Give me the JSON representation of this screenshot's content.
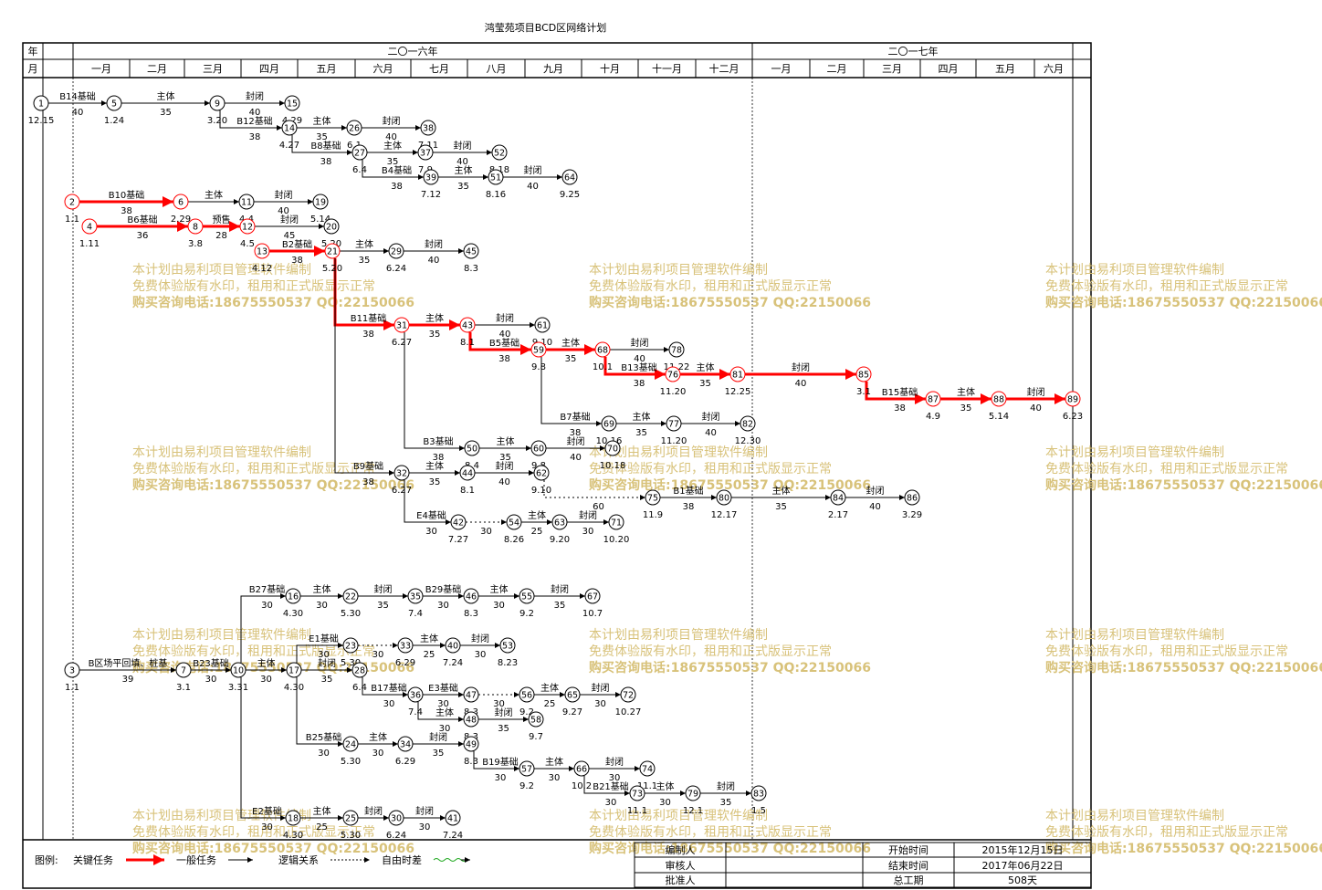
{
  "title": "鸿莹苑项目BCD区网络计划",
  "header": {
    "year_label": "年",
    "month_label": "月",
    "years": [
      "二〇一六年",
      "二〇一七年"
    ],
    "months": [
      "一月",
      "二月",
      "三月",
      "四月",
      "五月",
      "六月",
      "七月",
      "八月",
      "九月",
      "十月",
      "十一月",
      "十二月",
      "一月",
      "二月",
      "三月",
      "四月",
      "五月",
      "六月"
    ]
  },
  "watermark": {
    "line1": "本计划由易利项目管理软件编制",
    "line2": "免费体验版有水印，租用和正式版显示正常",
    "line3": "购买咨询电话:18675550537 QQ:22150066"
  },
  "legend": {
    "label": "图例:",
    "critical": "关键任务",
    "normal": "一般任务",
    "logic": "逻辑关系",
    "dashed": "自由时差"
  },
  "info": {
    "compiler_label": "编制人",
    "reviewer_label": "审核人",
    "approver_label": "批准人",
    "start_label": "开始时间",
    "end_label": "结束时间",
    "total_label": "总工期",
    "start_value": "2015年12月15日",
    "end_value": "2017年06月22日",
    "total_value": "508天"
  },
  "nodes": [
    {
      "id": "1",
      "d": "12.15",
      "crit": false
    },
    {
      "id": "5",
      "d": "1.24",
      "crit": false
    },
    {
      "id": "9",
      "d": "3.20",
      "crit": false
    },
    {
      "id": "15",
      "d": "4.29",
      "crit": false
    },
    {
      "id": "14",
      "d": "4.27",
      "crit": false
    },
    {
      "id": "26",
      "d": "6.1",
      "crit": false
    },
    {
      "id": "38",
      "d": "7.11",
      "crit": false
    },
    {
      "id": "27",
      "d": "6.4",
      "crit": false
    },
    {
      "id": "37",
      "d": "7.9",
      "crit": false
    },
    {
      "id": "52",
      "d": "8.18",
      "crit": false
    },
    {
      "id": "39",
      "d": "7.12",
      "crit": false
    },
    {
      "id": "51",
      "d": "8.16",
      "crit": false
    },
    {
      "id": "64",
      "d": "9.25",
      "crit": false
    },
    {
      "id": "2",
      "d": "1.1",
      "crit": true
    },
    {
      "id": "6",
      "d": "2.29",
      "crit": true
    },
    {
      "id": "11",
      "d": "4.4",
      "crit": false
    },
    {
      "id": "19",
      "d": "5.14",
      "crit": false
    },
    {
      "id": "4",
      "d": "1.11",
      "crit": true
    },
    {
      "id": "8",
      "d": "3.8",
      "crit": true
    },
    {
      "id": "12",
      "d": "4.5",
      "crit": true
    },
    {
      "id": "20",
      "d": "5.20",
      "crit": false
    },
    {
      "id": "13",
      "d": "4.12",
      "crit": true
    },
    {
      "id": "21",
      "d": "5.20",
      "crit": true
    },
    {
      "id": "29",
      "d": "6.24",
      "crit": false
    },
    {
      "id": "45",
      "d": "8.3",
      "crit": false
    },
    {
      "id": "31",
      "d": "6.27",
      "crit": true
    },
    {
      "id": "43",
      "d": "8.1",
      "crit": true
    },
    {
      "id": "61",
      "d": "9.10",
      "crit": false
    },
    {
      "id": "59",
      "d": "9.8",
      "crit": true
    },
    {
      "id": "68",
      "d": "10.1",
      "crit": true
    },
    {
      "id": "78",
      "d": "11.22",
      "crit": false
    },
    {
      "id": "76",
      "d": "11.20",
      "crit": true
    },
    {
      "id": "81",
      "d": "12.25",
      "crit": true
    },
    {
      "id": "85",
      "d": "3.1",
      "crit": true
    },
    {
      "id": "87",
      "d": "4.9",
      "crit": true
    },
    {
      "id": "88",
      "d": "5.14",
      "crit": true
    },
    {
      "id": "89",
      "d": "6.23",
      "crit": true
    },
    {
      "id": "69",
      "d": "10.16",
      "crit": false
    },
    {
      "id": "77",
      "d": "11.20",
      "crit": false
    },
    {
      "id": "82",
      "d": "12.30",
      "crit": false
    },
    {
      "id": "50",
      "d": "8.4",
      "crit": false
    },
    {
      "id": "60",
      "d": "9.8",
      "crit": false
    },
    {
      "id": "70",
      "d": "10.18",
      "crit": false
    },
    {
      "id": "32",
      "d": "6.27",
      "crit": false
    },
    {
      "id": "44",
      "d": "8.1",
      "crit": false
    },
    {
      "id": "62",
      "d": "9.10",
      "crit": false
    },
    {
      "id": "75",
      "d": "11.9",
      "crit": false
    },
    {
      "id": "80",
      "d": "12.17",
      "crit": false
    },
    {
      "id": "84",
      "d": "2.17",
      "crit": false
    },
    {
      "id": "86",
      "d": "3.29",
      "crit": false
    },
    {
      "id": "42",
      "d": "7.27",
      "crit": false
    },
    {
      "id": "54",
      "d": "8.26",
      "crit": false
    },
    {
      "id": "63",
      "d": "9.20",
      "crit": false
    },
    {
      "id": "71",
      "d": "10.20",
      "crit": false
    },
    {
      "id": "3",
      "d": "1.1",
      "crit": false
    },
    {
      "id": "7",
      "d": "3.1",
      "crit": false
    },
    {
      "id": "10",
      "d": "3.31",
      "crit": false
    },
    {
      "id": "16",
      "d": "4.30",
      "crit": false
    },
    {
      "id": "22",
      "d": "5.30",
      "crit": false
    },
    {
      "id": "35",
      "d": "7.4",
      "crit": false
    },
    {
      "id": "46",
      "d": "8.3",
      "crit": false
    },
    {
      "id": "55",
      "d": "9.2",
      "crit": false
    },
    {
      "id": "67",
      "d": "10.7",
      "crit": false
    },
    {
      "id": "23",
      "d": "5.30",
      "crit": false
    },
    {
      "id": "33",
      "d": "6.29",
      "crit": false
    },
    {
      "id": "40",
      "d": "7.24",
      "crit": false
    },
    {
      "id": "53",
      "d": "8.23",
      "crit": false
    },
    {
      "id": "17",
      "d": "4.30",
      "crit": false
    },
    {
      "id": "28",
      "d": "6.4",
      "crit": false
    },
    {
      "id": "36",
      "d": "7.4",
      "crit": false
    },
    {
      "id": "47",
      "d": "8.3",
      "crit": false
    },
    {
      "id": "56",
      "d": "9.2",
      "crit": false
    },
    {
      "id": "65",
      "d": "9.27",
      "crit": false
    },
    {
      "id": "72",
      "d": "10.27",
      "crit": false
    },
    {
      "id": "48",
      "d": "8.3",
      "crit": false
    },
    {
      "id": "58",
      "d": "9.7",
      "crit": false
    },
    {
      "id": "24",
      "d": "5.30",
      "crit": false
    },
    {
      "id": "34",
      "d": "6.29",
      "crit": false
    },
    {
      "id": "49",
      "d": "8.3",
      "crit": false
    },
    {
      "id": "57",
      "d": "9.2",
      "crit": false
    },
    {
      "id": "66",
      "d": "10.2",
      "crit": false
    },
    {
      "id": "74",
      "d": "11.1",
      "crit": false
    },
    {
      "id": "73",
      "d": "11.1",
      "crit": false
    },
    {
      "id": "79",
      "d": "12.1",
      "crit": false
    },
    {
      "id": "83",
      "d": "1.5",
      "crit": false
    },
    {
      "id": "18",
      "d": "4.30",
      "crit": false
    },
    {
      "id": "25",
      "d": "5.30",
      "crit": false
    },
    {
      "id": "30",
      "d": "6.24",
      "crit": false
    },
    {
      "id": "41",
      "d": "7.24",
      "crit": false
    }
  ],
  "tasks": [
    {
      "from": "1",
      "to": "5",
      "name": "B14基础",
      "dur": "40",
      "crit": false
    },
    {
      "from": "5",
      "to": "9",
      "name": "主体",
      "dur": "35",
      "crit": false
    },
    {
      "from": "9",
      "to": "15",
      "name": "封闭",
      "dur": "40",
      "crit": false
    },
    {
      "from": "9",
      "to": "14",
      "name": "B12基础",
      "dur": "38",
      "crit": false
    },
    {
      "from": "14",
      "to": "26",
      "name": "主体",
      "dur": "35",
      "crit": false
    },
    {
      "from": "26",
      "to": "38",
      "name": "封闭",
      "dur": "40",
      "crit": false
    },
    {
      "from": "14",
      "to": "27",
      "name": "B8基础",
      "dur": "38",
      "crit": false
    },
    {
      "from": "27",
      "to": "37",
      "name": "主体",
      "dur": "35",
      "crit": false
    },
    {
      "from": "37",
      "to": "52",
      "name": "封闭",
      "dur": "40",
      "crit": false
    },
    {
      "from": "27",
      "to": "39",
      "name": "B4基础",
      "dur": "38",
      "crit": false
    },
    {
      "from": "39",
      "to": "51",
      "name": "主体",
      "dur": "35",
      "crit": false
    },
    {
      "from": "51",
      "to": "64",
      "name": "封闭",
      "dur": "40",
      "crit": false
    },
    {
      "from": "2",
      "to": "6",
      "name": "B10基础",
      "dur": "38",
      "crit": true
    },
    {
      "from": "6",
      "to": "11",
      "name": "主体",
      "dur": "",
      "crit": false
    },
    {
      "from": "11",
      "to": "19",
      "name": "封闭",
      "dur": "40",
      "crit": false
    },
    {
      "from": "4",
      "to": "8",
      "name": "B6基础",
      "dur": "36",
      "crit": true
    },
    {
      "from": "8",
      "to": "12",
      "name": "预售",
      "dur": "28",
      "crit": true
    },
    {
      "from": "12",
      "to": "20",
      "name": "封闭",
      "dur": "45",
      "crit": false
    },
    {
      "from": "13",
      "to": "21",
      "name": "B2基础",
      "dur": "38",
      "crit": true
    },
    {
      "from": "21",
      "to": "29",
      "name": "主体",
      "dur": "35",
      "crit": false
    },
    {
      "from": "29",
      "to": "45",
      "name": "封闭",
      "dur": "40",
      "crit": false
    },
    {
      "from": "21",
      "to": "31",
      "name": "B11基础",
      "dur": "38",
      "crit": true
    },
    {
      "from": "31",
      "to": "43",
      "name": "主体",
      "dur": "35",
      "crit": true
    },
    {
      "from": "43",
      "to": "61",
      "name": "封闭",
      "dur": "40",
      "crit": false
    },
    {
      "from": "43",
      "to": "59",
      "name": "B5基础",
      "dur": "38",
      "crit": true
    },
    {
      "from": "59",
      "to": "68",
      "name": "主体",
      "dur": "35",
      "crit": true
    },
    {
      "from": "68",
      "to": "78",
      "name": "封闭",
      "dur": "40",
      "crit": false
    },
    {
      "from": "68",
      "to": "76",
      "name": "B13基础",
      "dur": "38",
      "crit": true
    },
    {
      "from": "76",
      "to": "81",
      "name": "主体",
      "dur": "35",
      "crit": true
    },
    {
      "from": "81",
      "to": "85",
      "name": "封闭",
      "dur": "40",
      "crit": true
    },
    {
      "from": "85",
      "to": "87",
      "name": "B15基础",
      "dur": "38",
      "crit": true
    },
    {
      "from": "87",
      "to": "88",
      "name": "主体",
      "dur": "35",
      "crit": true
    },
    {
      "from": "88",
      "to": "89",
      "name": "封闭",
      "dur": "40",
      "crit": true
    },
    {
      "from": "59",
      "to": "69",
      "name": "B7基础",
      "dur": "38",
      "crit": false
    },
    {
      "from": "69",
      "to": "77",
      "name": "主体",
      "dur": "35",
      "crit": false
    },
    {
      "from": "77",
      "to": "82",
      "name": "封闭",
      "dur": "40",
      "crit": false
    },
    {
      "from": "31",
      "to": "50",
      "name": "B3基础",
      "dur": "38",
      "crit": false
    },
    {
      "from": "50",
      "to": "60",
      "name": "主体",
      "dur": "35",
      "crit": false
    },
    {
      "from": "60",
      "to": "70",
      "name": "封闭",
      "dur": "40",
      "crit": false
    },
    {
      "from": "21",
      "to": "32",
      "name": "B9基础",
      "dur": "38",
      "crit": false
    },
    {
      "from": "32",
      "to": "44",
      "name": "主体",
      "dur": "35",
      "crit": false
    },
    {
      "from": "44",
      "to": "62",
      "name": "封闭",
      "dur": "40",
      "crit": false
    },
    {
      "from": "75",
      "to": "80",
      "name": "B1基础",
      "dur": "38",
      "crit": false
    },
    {
      "from": "80",
      "to": "84",
      "name": "主体",
      "dur": "35",
      "crit": false
    },
    {
      "from": "84",
      "to": "86",
      "name": "封闭",
      "dur": "40",
      "crit": false
    },
    {
      "from": "32",
      "to": "42",
      "name": "E4基础",
      "dur": "30",
      "crit": false
    },
    {
      "from": "54",
      "to": "63",
      "name": "主体",
      "dur": "25",
      "crit": false
    },
    {
      "from": "63",
      "to": "71",
      "name": "封闭",
      "dur": "30",
      "crit": false
    },
    {
      "from": "3",
      "to": "7",
      "name": "B区场平回填、桩基",
      "dur": "39",
      "crit": false
    },
    {
      "from": "7",
      "to": "10",
      "name": "B23基础",
      "dur": "30",
      "crit": false
    },
    {
      "from": "10",
      "to": "16",
      "name": "B27基础",
      "dur": "30",
      "crit": false
    },
    {
      "from": "16",
      "to": "22",
      "name": "主体",
      "dur": "30",
      "crit": false
    },
    {
      "from": "22",
      "to": "35",
      "name": "封闭",
      "dur": "35",
      "crit": false
    },
    {
      "from": "35",
      "to": "46",
      "name": "B29基础",
      "dur": "30",
      "crit": false
    },
    {
      "from": "46",
      "to": "55",
      "name": "主体",
      "dur": "30",
      "crit": false
    },
    {
      "from": "55",
      "to": "67",
      "name": "封闭",
      "dur": "35",
      "crit": false
    },
    {
      "from": "17",
      "to": "23",
      "name": "E1基础",
      "dur": "30",
      "crit": false
    },
    {
      "from": "33",
      "to": "40",
      "name": "主体",
      "dur": "25",
      "crit": false
    },
    {
      "from": "40",
      "to": "53",
      "name": "封闭",
      "dur": "30",
      "crit": false
    },
    {
      "from": "10",
      "to": "17",
      "name": "主体",
      "dur": "30",
      "crit": false
    },
    {
      "from": "17",
      "to": "28",
      "name": "封闭",
      "dur": "35",
      "crit": false
    },
    {
      "from": "28",
      "to": "36",
      "name": "B17基础",
      "dur": "30",
      "crit": false
    },
    {
      "from": "36",
      "to": "47",
      "name": "E3基础",
      "dur": "30",
      "crit": false
    },
    {
      "from": "56",
      "to": "65",
      "name": "主体",
      "dur": "25",
      "crit": false
    },
    {
      "from": "65",
      "to": "72",
      "name": "封闭",
      "dur": "30",
      "crit": false
    },
    {
      "from": "36",
      "to": "48",
      "name": "主体",
      "dur": "30",
      "crit": false
    },
    {
      "from": "48",
      "to": "58",
      "name": "封闭",
      "dur": "35",
      "crit": false
    },
    {
      "from": "17",
      "to": "24",
      "name": "B25基础",
      "dur": "30",
      "crit": false
    },
    {
      "from": "24",
      "to": "34",
      "name": "主体",
      "dur": "30",
      "crit": false
    },
    {
      "from": "34",
      "to": "49",
      "name": "封闭",
      "dur": "35",
      "crit": false
    },
    {
      "from": "49",
      "to": "57",
      "name": "B19基础",
      "dur": "30",
      "crit": false
    },
    {
      "from": "57",
      "to": "66",
      "name": "主体",
      "dur": "30",
      "crit": false
    },
    {
      "from": "66",
      "to": "74",
      "name": "封闭",
      "dur": "30",
      "crit": false
    },
    {
      "from": "66",
      "to": "73",
      "name": "B21基础",
      "dur": "30",
      "crit": false
    },
    {
      "from": "73",
      "to": "79",
      "name": "主体",
      "dur": "30",
      "crit": false
    },
    {
      "from": "79",
      "to": "83",
      "name": "封闭",
      "dur": "35",
      "crit": false
    },
    {
      "from": "10",
      "to": "18",
      "name": "E2基础",
      "dur": "30",
      "crit": false
    },
    {
      "from": "18",
      "to": "25",
      "name": "主体",
      "dur": "25",
      "crit": false
    },
    {
      "from": "25",
      "to": "30",
      "name": "封闭",
      "dur": "",
      "crit": false
    },
    {
      "from": "30",
      "to": "41",
      "name": "封闭",
      "dur": "30",
      "crit": false
    }
  ],
  "free_floats": [
    {
      "from": "62",
      "to": "75",
      "dur": "60"
    },
    {
      "from": "42",
      "to": "54",
      "dur": "30"
    },
    {
      "from": "23",
      "to": "33",
      "dur": "30"
    },
    {
      "from": "47",
      "to": "56",
      "dur": "30"
    }
  ]
}
